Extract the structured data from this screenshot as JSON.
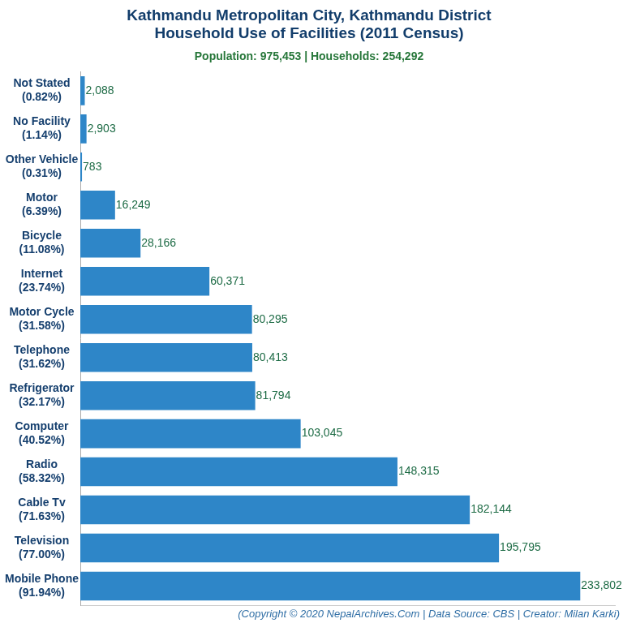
{
  "chart_data": {
    "type": "bar",
    "orientation": "horizontal",
    "title": "Kathmandu Metropolitan City, Kathmandu District\nHousehold Use of Facilities (2011 Census)",
    "subtitle": "Population: 975,453 | Households: 254,292",
    "annotation": "(Copyright © 2020 NepalArchives.Com | Data Source: CBS | Creator: Milan Karki)",
    "categories": [
      "Not Stated\n(0.82%)",
      "No Facility\n(1.14%)",
      "Other Vehicle\n(0.31%)",
      "Motor\n(6.39%)",
      "Bicycle\n(11.08%)",
      "Internet\n(23.74%)",
      "Motor Cycle\n(31.58%)",
      "Telephone\n(31.62%)",
      "Refrigerator\n(32.17%)",
      "Computer\n(40.52%)",
      "Radio\n(58.32%)",
      "Cable Tv\n(71.63%)",
      "Television\n(77.00%)",
      "Mobile Phone\n(91.94%)"
    ],
    "values": [
      2088,
      2903,
      783,
      16249,
      28166,
      60371,
      80295,
      80413,
      81794,
      103045,
      148315,
      182144,
      195795,
      233802
    ],
    "value_labels": [
      "2,088",
      "2,903",
      "783",
      "16,249",
      "28,166",
      "60,371",
      "80,295",
      "80,413",
      "81,794",
      "103,045",
      "148,315",
      "182,144",
      "195,795",
      "233,802"
    ],
    "color": "#2e86c8",
    "xlim": [
      0,
      250000
    ],
    "grid": false,
    "data_labels": true,
    "tick_labels": "y"
  }
}
